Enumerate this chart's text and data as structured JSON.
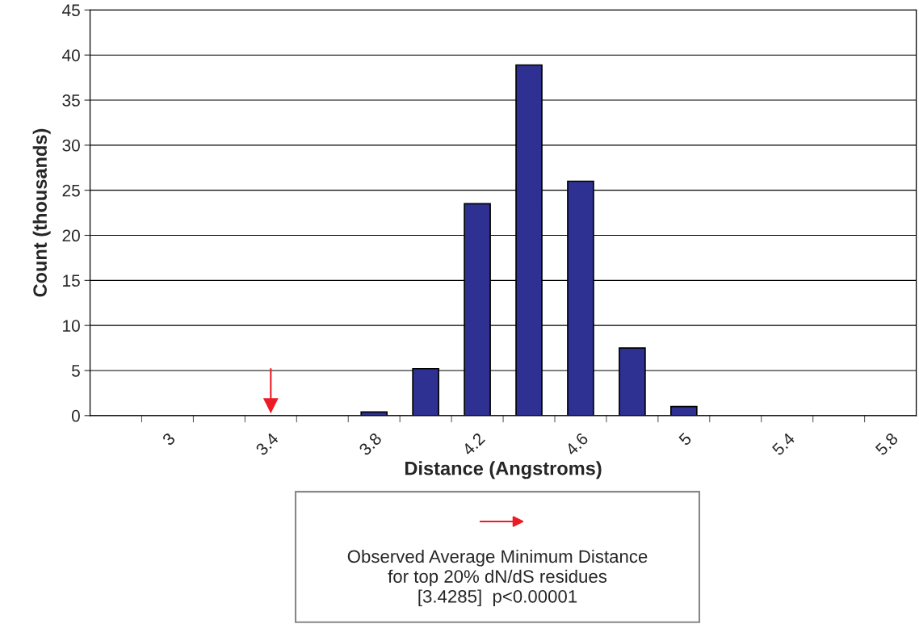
{
  "chart_data": {
    "type": "bar",
    "xlabel": "Distance (Angstroms)",
    "ylabel": "Count (thousands)",
    "categories": [
      null,
      "3",
      null,
      "3.4",
      null,
      "3.8",
      null,
      "4.2",
      null,
      "4.6",
      null,
      "5",
      null,
      "5.4",
      null,
      "5.8"
    ],
    "values": [
      0,
      0,
      0,
      0,
      0,
      0.4,
      5.2,
      23.5,
      38.9,
      26,
      7.5,
      1.0,
      0,
      0,
      0,
      0
    ],
    "color": "#2e3192",
    "ylim": [
      0,
      45
    ],
    "yticks": [
      0,
      5,
      10,
      15,
      20,
      25,
      30,
      35,
      40,
      45
    ],
    "grid": "y",
    "ref_lines": [
      {
        "axis": "x",
        "value": "3.4",
        "color": "#ed1c24"
      }
    ],
    "annotations": [
      "Observed Average Minimum Distance\nfor top 20% dN/dS residues\n[3.4285]  p<0.00001"
    ]
  }
}
